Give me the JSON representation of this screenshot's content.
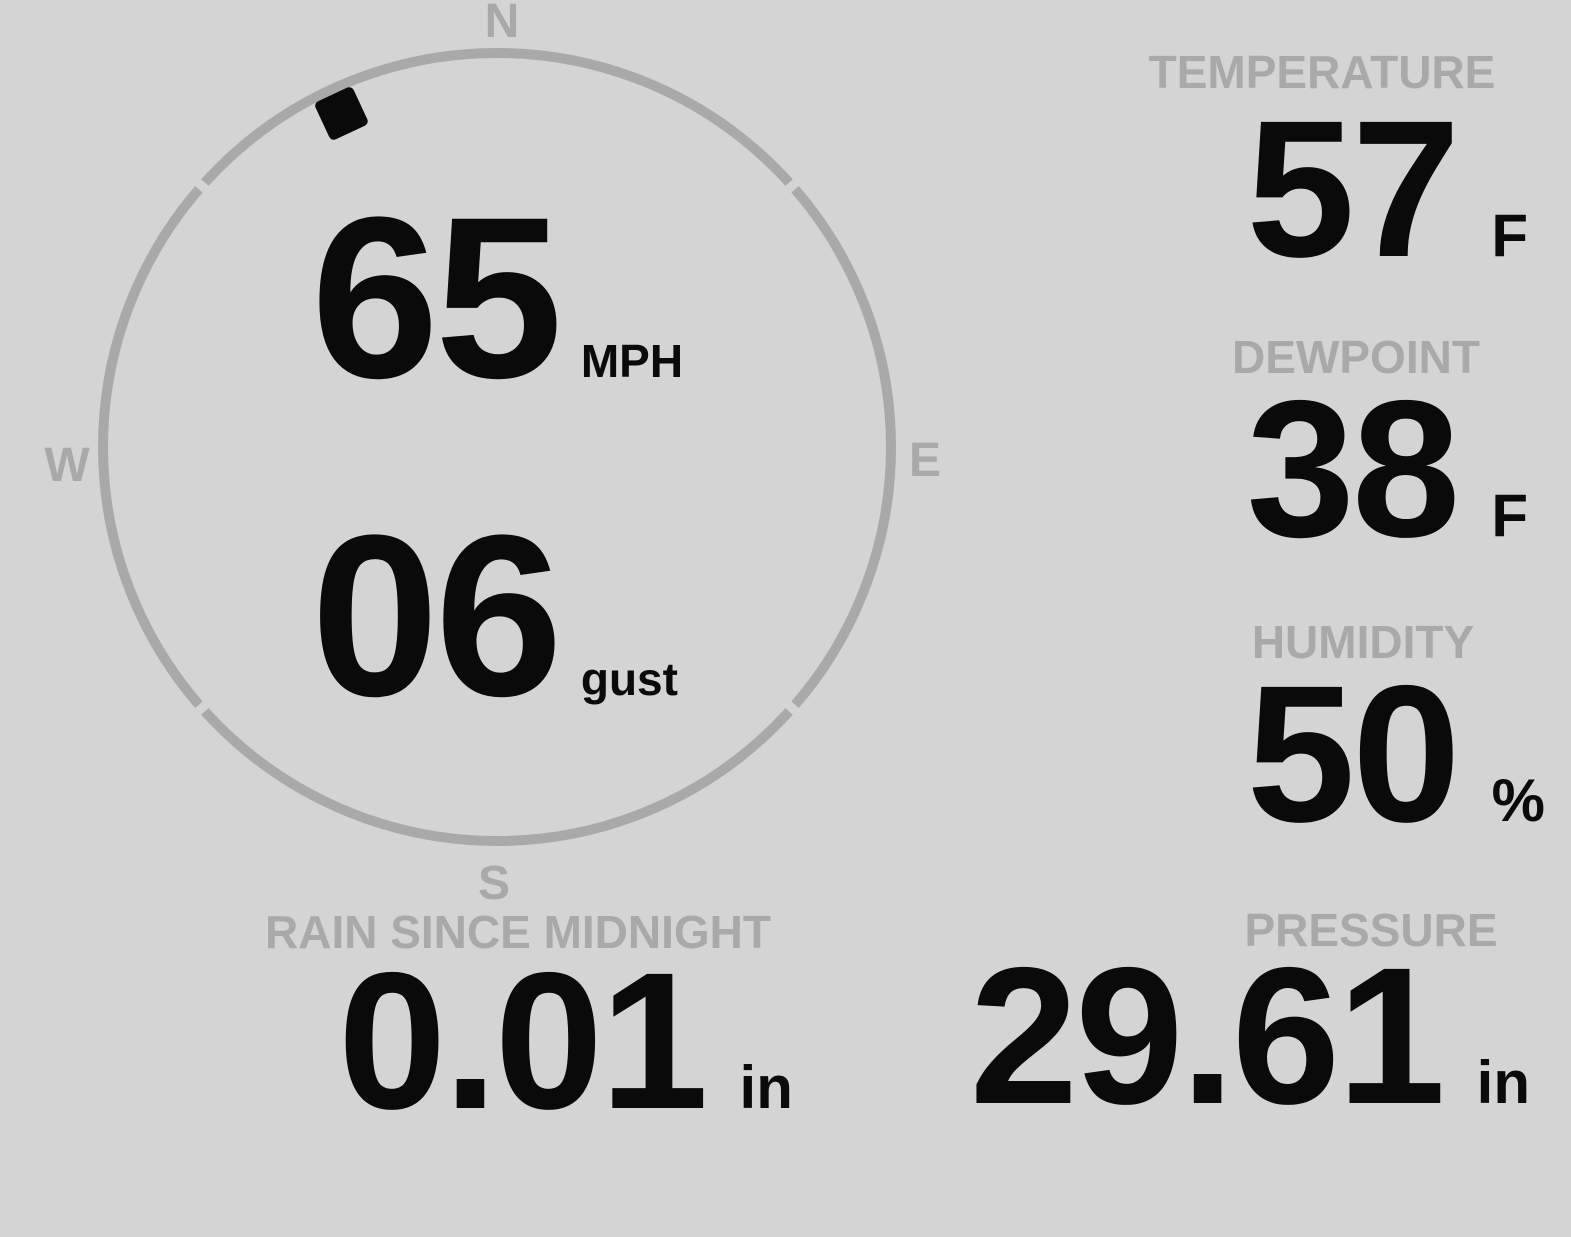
{
  "colors": {
    "background": "#d4d4d4",
    "muted_gray": "#a9a9a9",
    "text_black": "#0a0a0a"
  },
  "wind": {
    "compass": {
      "north": "N",
      "east": "E",
      "south": "S",
      "west": "W"
    },
    "direction_deg": 335,
    "speed": {
      "value": "65",
      "unit": "MPH"
    },
    "gust": {
      "value": "06",
      "unit": "gust"
    }
  },
  "metrics": {
    "temperature": {
      "label": "TEMPERATURE",
      "value": "57",
      "unit": "F"
    },
    "dewpoint": {
      "label": "DEWPOINT",
      "value": "38",
      "unit": "F"
    },
    "humidity": {
      "label": "HUMIDITY",
      "value": "50",
      "unit": "%"
    },
    "rain_since_midnight": {
      "label": "RAIN SINCE MIDNIGHT",
      "value": "0.01",
      "unit": "in"
    },
    "pressure": {
      "label": "PRESSURE",
      "value": "29.61",
      "unit": "in"
    }
  }
}
